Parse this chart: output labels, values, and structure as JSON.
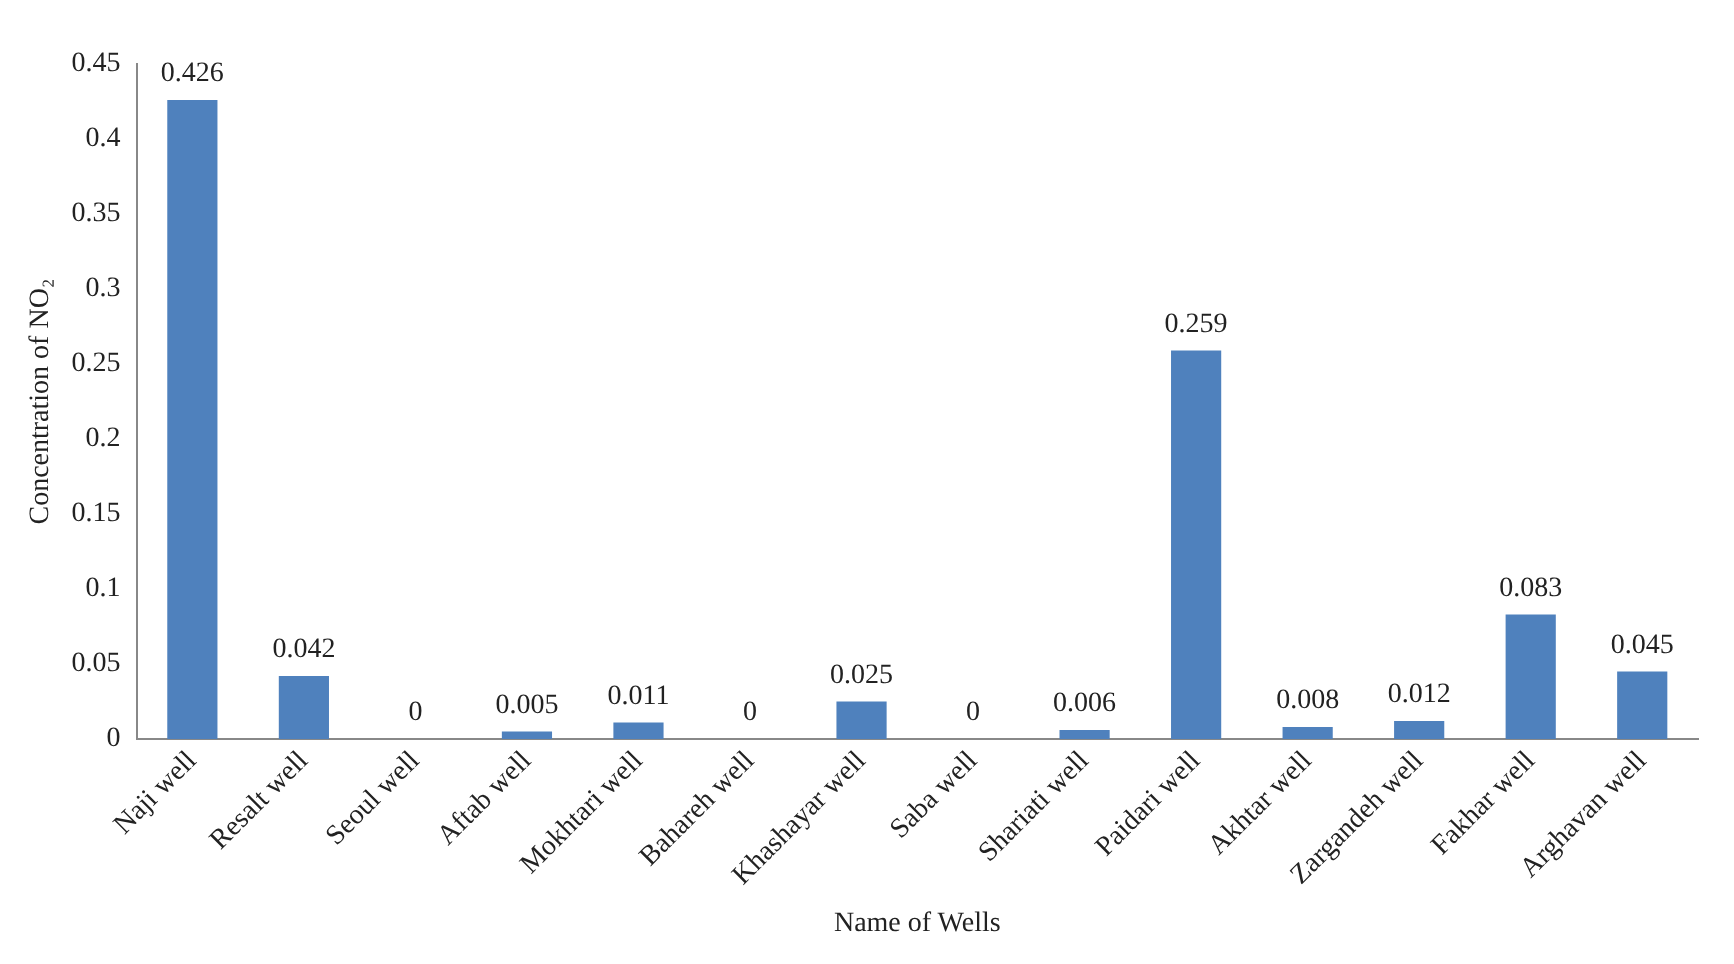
{
  "chart_data": {
    "type": "bar",
    "xlabel": "Name of Wells",
    "ylabel": "Concentration of NO₂",
    "categories": [
      "Naji well",
      "Resalt well",
      "Seoul well",
      "Aftab well",
      "Mokhtari well",
      "Bahareh well",
      "Khashayar well",
      "Saba well",
      "Shariati well",
      "Paidari well",
      "Akhtar well",
      "Zargandeh well",
      "Fakhar well",
      "Arghavan well"
    ],
    "values": [
      0.426,
      0.042,
      0,
      0.005,
      0.011,
      0,
      0.025,
      0,
      0.006,
      0.259,
      0.008,
      0.012,
      0.083,
      0.045
    ],
    "color": "#4f81bd",
    "ylim": [
      0,
      0.45
    ],
    "yticks": [
      0,
      0.05,
      0.1,
      0.15,
      0.2,
      0.25,
      0.3,
      0.35,
      0.4,
      0.45
    ],
    "grid": false,
    "data_labels": true
  }
}
